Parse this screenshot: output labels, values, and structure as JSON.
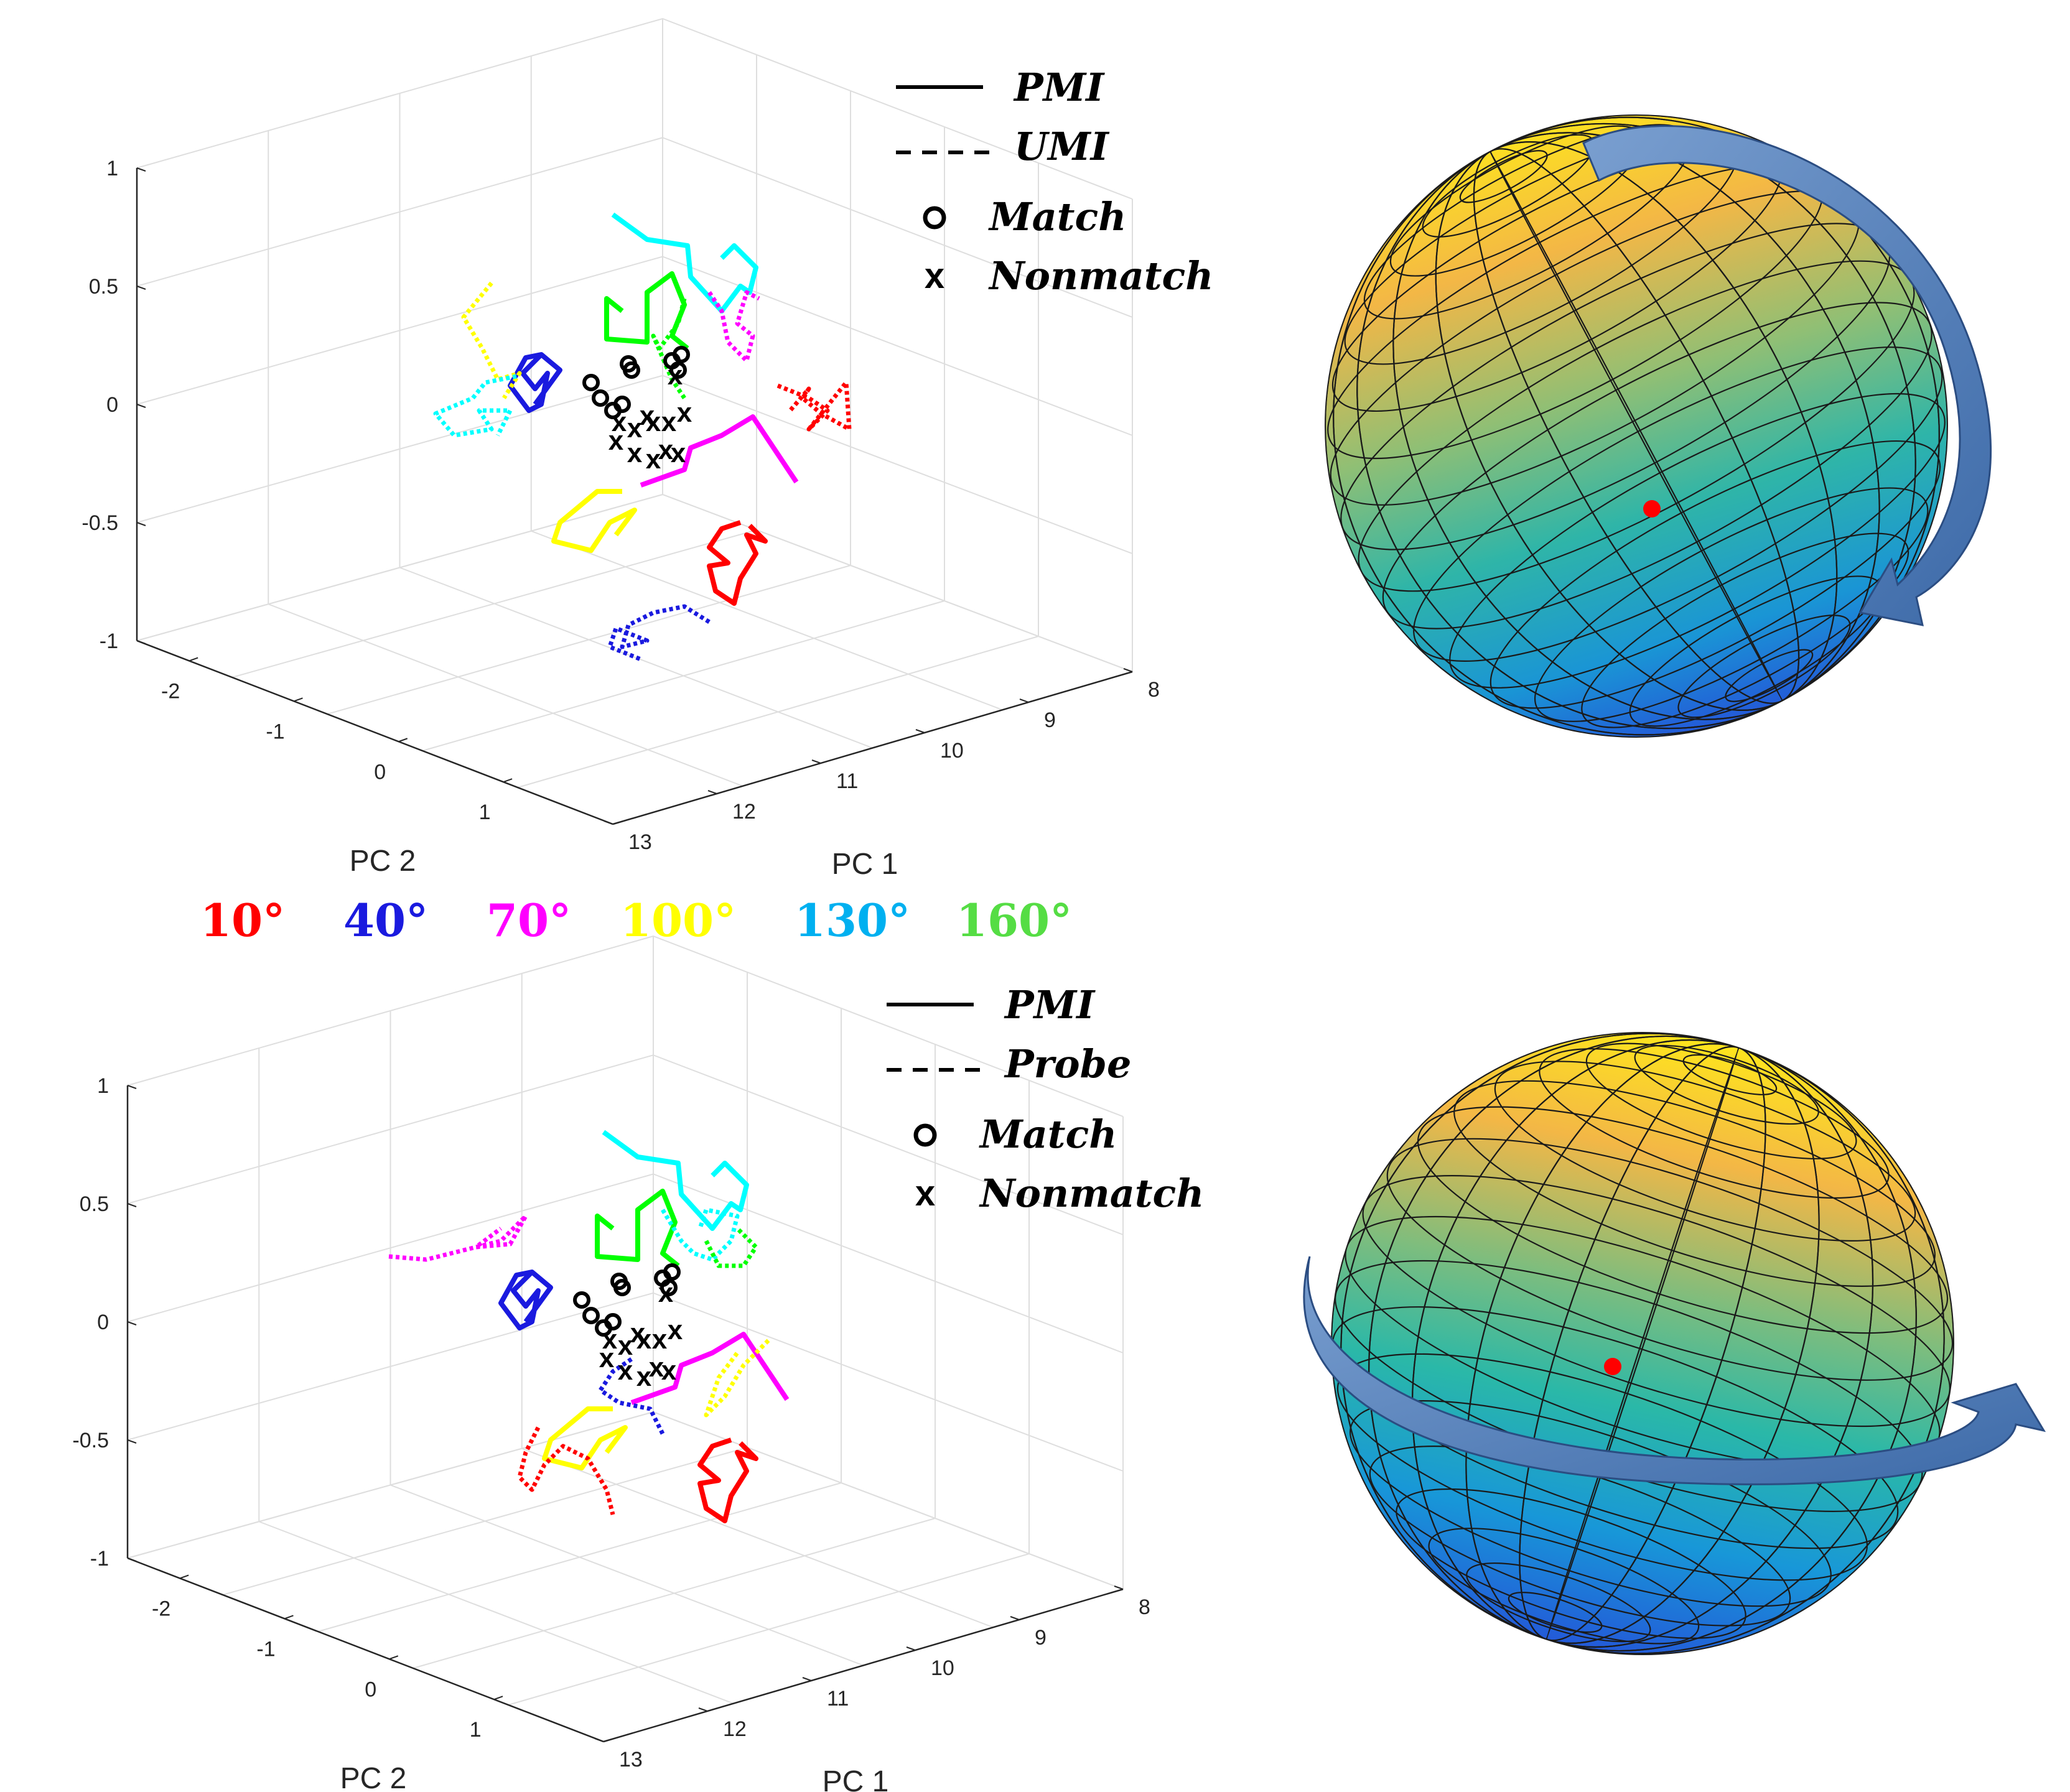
{
  "colors": {
    "10°": "#ff0000",
    "40°": "#1a1adf",
    "70°": "#ff00ff",
    "100°": "#ffff00",
    "130°": "#00ffff",
    "160°": "#00ff00",
    "marker": "#000000"
  },
  "angle_labels": [
    {
      "text": "10°",
      "color": "#ff0000"
    },
    {
      "text": "40°",
      "color": "#1a1adf"
    },
    {
      "text": "70°",
      "color": "#ff00ff"
    },
    {
      "text": "100°",
      "color": "#ffff00"
    },
    {
      "text": "130°",
      "color": "#00b0f0"
    },
    {
      "text": "160°",
      "color": "#55dd44"
    }
  ],
  "chart_data": [
    {
      "type": "line",
      "xlabel": "PC 1",
      "ylabel": "PC 2",
      "xticks": [
        "8",
        "9",
        "10",
        "11",
        "12",
        "13"
      ],
      "yticks": [
        "-2",
        "-1",
        "0",
        "1"
      ],
      "zticks": [
        "1",
        "0.5",
        "0",
        "-0.5",
        "-1"
      ],
      "xlim": [
        8,
        13
      ],
      "ylim": [
        -2.5,
        1
      ],
      "zlim": [
        -1,
        1
      ],
      "grid": true,
      "legend": {
        "placement": "top-right",
        "entries": [
          {
            "style": "solid",
            "label": "PMI"
          },
          {
            "style": "dashed",
            "label": "UMI"
          },
          {
            "style": "circle",
            "label": "Match"
          },
          {
            "style": "x",
            "label": "Nonmatch"
          }
        ]
      }
    },
    {
      "type": "line",
      "xlabel": "PC 1",
      "ylabel": "PC 2",
      "xticks": [
        "8",
        "9",
        "10",
        "11",
        "12",
        "13"
      ],
      "yticks": [
        "-2",
        "-1",
        "0",
        "1"
      ],
      "zticks": [
        "1",
        "0.5",
        "0",
        "-0.5",
        "-1"
      ],
      "xlim": [
        8,
        13
      ],
      "ylim": [
        -2.5,
        1
      ],
      "zlim": [
        -1,
        1
      ],
      "grid": true,
      "legend": {
        "placement": "top-right",
        "entries": [
          {
            "style": "solid",
            "label": "PMI"
          },
          {
            "style": "dashed",
            "label": "Probe"
          },
          {
            "style": "circle",
            "label": "Match"
          },
          {
            "style": "x",
            "label": "Nonmatch"
          }
        ]
      }
    }
  ],
  "spheres": [
    {
      "arrow": "vertical",
      "description_color_top": "#ffe000",
      "description_color_bottom": "#1e6fe0",
      "dot_color": "#ff0000"
    },
    {
      "arrow": "horizontal",
      "description_color_top": "#ffe000",
      "description_color_bottom": "#1e6fe0",
      "dot_color": "#ff0000"
    }
  ]
}
